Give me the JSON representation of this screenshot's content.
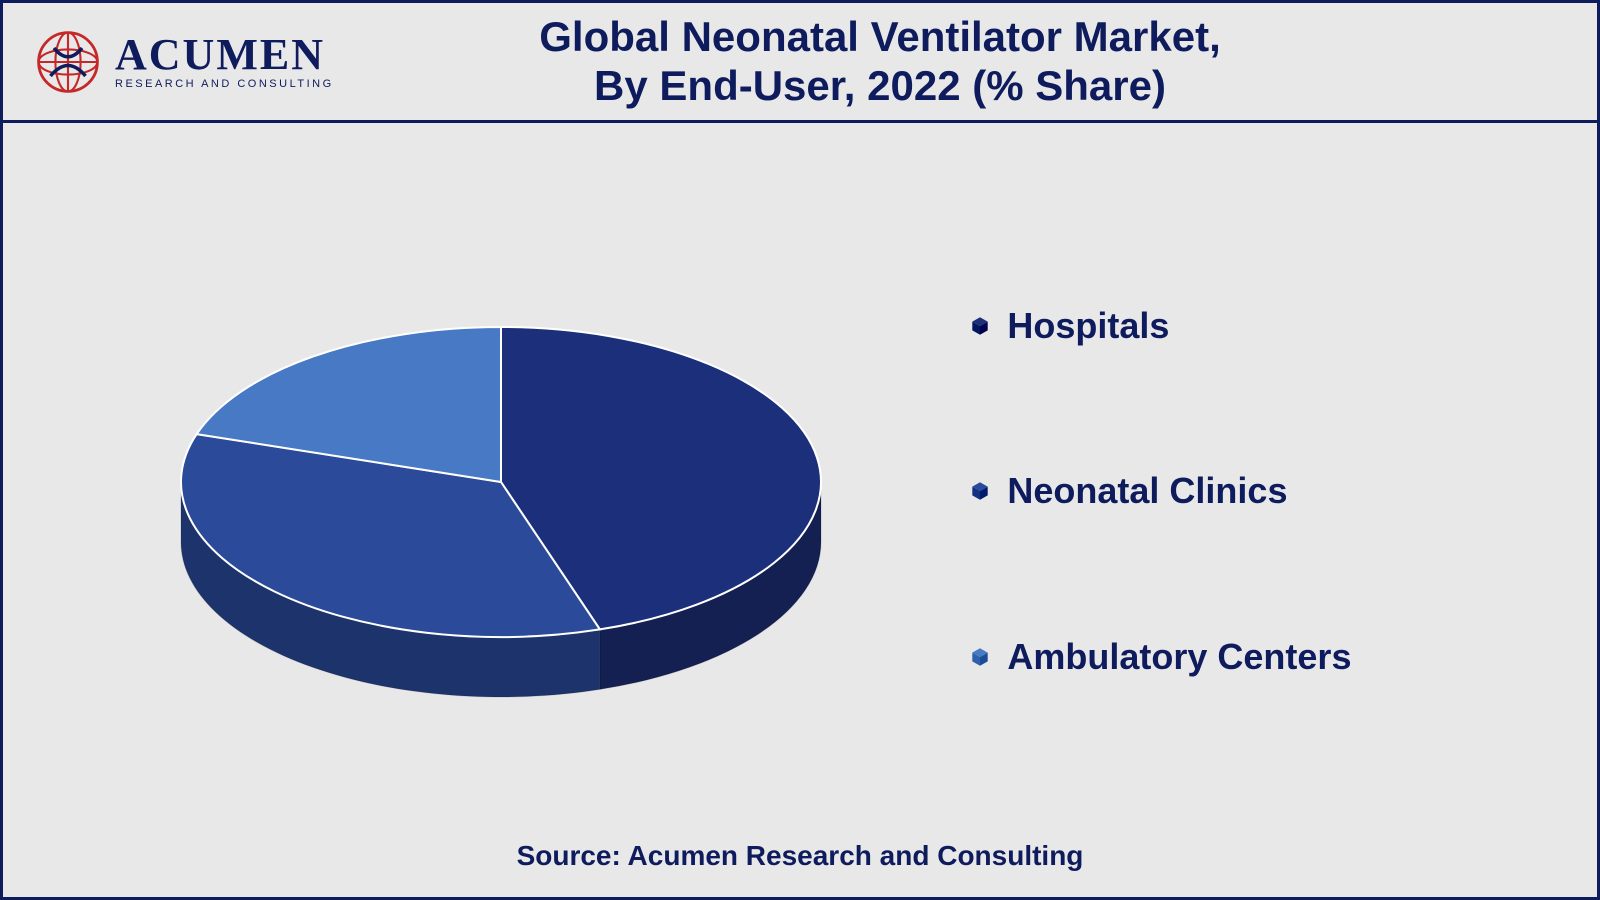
{
  "logo": {
    "brand": "ACUMEN",
    "tagline": "RESEARCH AND CONSULTING",
    "globe_color": "#c62828",
    "overlay_color": "#0e1b5c"
  },
  "title": {
    "line1": "Global Neonatal Ventilator Market,",
    "line2": "By End-User, 2022 (% Share)",
    "color": "#0e1b5c",
    "fontsize": 42
  },
  "chart": {
    "type": "pie-3d",
    "background_color": "#e8e8e8",
    "slices": [
      {
        "label": "Hospitals",
        "value": 45,
        "color_top": "#1c2f7a",
        "color_side": "#141f52"
      },
      {
        "label": "Neonatal Clinics",
        "value": 35,
        "color_top": "#2b4a9a",
        "color_side": "#1d336b"
      },
      {
        "label": "Ambulatory Centers",
        "value": 20,
        "color_top": "#4879c4",
        "color_side": "#335692"
      }
    ],
    "ellipse_rx": 320,
    "ellipse_ry": 155,
    "depth": 60,
    "start_angle_deg": -90
  },
  "legend": {
    "items": [
      {
        "label": "Hospitals",
        "marker_fill": "#1c2f7a"
      },
      {
        "label": "Neonatal Clinics",
        "marker_fill": "#2b4a9a"
      },
      {
        "label": "Ambulatory Centers",
        "marker_fill": "#4879c4"
      }
    ],
    "label_color": "#0e1b5c",
    "label_fontsize": 36
  },
  "source": {
    "text": "Source: Acumen Research and Consulting",
    "color": "#0e1b5c",
    "fontsize": 28
  },
  "frame": {
    "border_color": "#0e1b5c",
    "border_width": 3
  }
}
